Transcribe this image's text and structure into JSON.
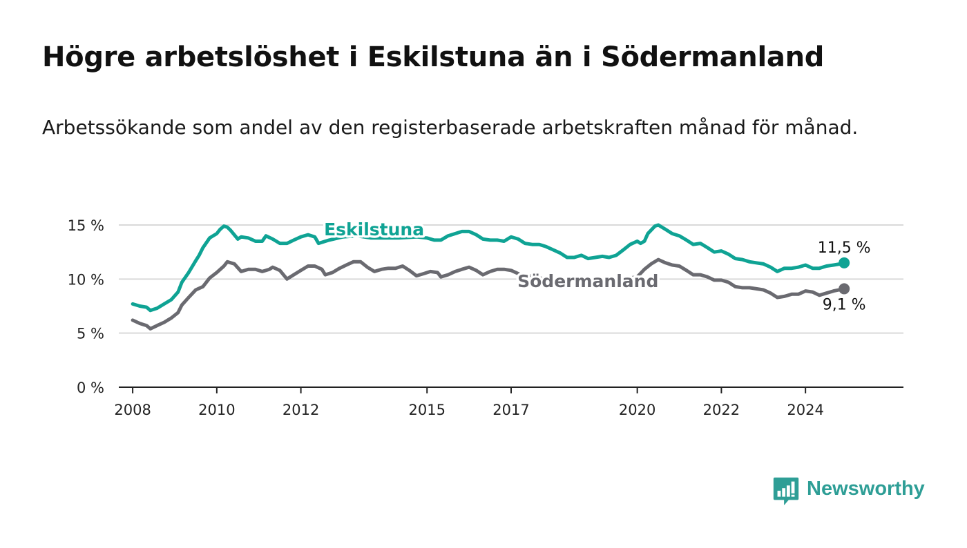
{
  "title": "Högre arbetslöshet i Eskilstuna än i Södermanland",
  "subtitle": "Arbetssökande som andel av den registerbaserade arbetskraften månad för månad.",
  "brand": {
    "name": "Newsworthy",
    "color": "#2e9e96",
    "icon": "bar-chart-speech-bubble-icon"
  },
  "chart_data": {
    "type": "line",
    "xlabel": "",
    "ylabel": "",
    "xlim": [
      2007.67,
      2026.33
    ],
    "ylim": [
      0,
      15
    ],
    "y_ticks": [
      {
        "value": 0,
        "label": "0 %"
      },
      {
        "value": 5,
        "label": "5 %"
      },
      {
        "value": 10,
        "label": "10 %"
      },
      {
        "value": 15,
        "label": "15 %"
      }
    ],
    "x_ticks": [
      {
        "value": 2008,
        "label": "2008"
      },
      {
        "value": 2010,
        "label": "2010"
      },
      {
        "value": 2012,
        "label": "2012"
      },
      {
        "value": 2015,
        "label": "2015"
      },
      {
        "value": 2017,
        "label": "2017"
      },
      {
        "value": 2020,
        "label": "2020"
      },
      {
        "value": 2022,
        "label": "2022"
      },
      {
        "value": 2024,
        "label": "2024"
      }
    ],
    "grid": true,
    "series": [
      {
        "name": "Eskilstuna",
        "color": "#0fa394",
        "end_label": "11,5 %",
        "points": [
          [
            2008.0,
            7.7
          ],
          [
            2008.17,
            7.5
          ],
          [
            2008.33,
            7.4
          ],
          [
            2008.42,
            7.1
          ],
          [
            2008.58,
            7.3
          ],
          [
            2008.75,
            7.7
          ],
          [
            2008.92,
            8.1
          ],
          [
            2009.08,
            8.8
          ],
          [
            2009.17,
            9.7
          ],
          [
            2009.33,
            10.6
          ],
          [
            2009.5,
            11.7
          ],
          [
            2009.58,
            12.2
          ],
          [
            2009.67,
            12.9
          ],
          [
            2009.83,
            13.8
          ],
          [
            2010.0,
            14.2
          ],
          [
            2010.08,
            14.6
          ],
          [
            2010.17,
            14.9
          ],
          [
            2010.25,
            14.8
          ],
          [
            2010.33,
            14.5
          ],
          [
            2010.5,
            13.7
          ],
          [
            2010.58,
            13.9
          ],
          [
            2010.75,
            13.8
          ],
          [
            2010.92,
            13.5
          ],
          [
            2011.08,
            13.5
          ],
          [
            2011.17,
            14.0
          ],
          [
            2011.33,
            13.7
          ],
          [
            2011.5,
            13.3
          ],
          [
            2011.67,
            13.3
          ],
          [
            2011.83,
            13.6
          ],
          [
            2012.0,
            13.9
          ],
          [
            2012.17,
            14.1
          ],
          [
            2012.33,
            13.9
          ],
          [
            2012.42,
            13.3
          ],
          [
            2012.67,
            13.6
          ],
          [
            2013.0,
            13.9
          ],
          [
            2013.33,
            14.0
          ],
          [
            2013.67,
            13.8
          ],
          [
            2014.0,
            13.8
          ],
          [
            2014.33,
            13.8
          ],
          [
            2014.75,
            13.9
          ],
          [
            2015.0,
            13.8
          ],
          [
            2015.17,
            13.6
          ],
          [
            2015.33,
            13.6
          ],
          [
            2015.5,
            14.0
          ],
          [
            2015.67,
            14.2
          ],
          [
            2015.83,
            14.4
          ],
          [
            2016.0,
            14.4
          ],
          [
            2016.17,
            14.1
          ],
          [
            2016.33,
            13.7
          ],
          [
            2016.5,
            13.6
          ],
          [
            2016.67,
            13.6
          ],
          [
            2016.83,
            13.5
          ],
          [
            2017.0,
            13.9
          ],
          [
            2017.17,
            13.7
          ],
          [
            2017.33,
            13.3
          ],
          [
            2017.5,
            13.2
          ],
          [
            2017.67,
            13.2
          ],
          [
            2017.83,
            13.0
          ],
          [
            2018.0,
            12.7
          ],
          [
            2018.17,
            12.4
          ],
          [
            2018.33,
            12.0
          ],
          [
            2018.5,
            12.0
          ],
          [
            2018.67,
            12.2
          ],
          [
            2018.83,
            11.9
          ],
          [
            2019.0,
            12.0
          ],
          [
            2019.17,
            12.1
          ],
          [
            2019.33,
            12.0
          ],
          [
            2019.5,
            12.2
          ],
          [
            2019.67,
            12.7
          ],
          [
            2019.83,
            13.2
          ],
          [
            2020.0,
            13.5
          ],
          [
            2020.08,
            13.3
          ],
          [
            2020.17,
            13.5
          ],
          [
            2020.25,
            14.2
          ],
          [
            2020.42,
            14.9
          ],
          [
            2020.5,
            15.0
          ],
          [
            2020.67,
            14.6
          ],
          [
            2020.83,
            14.2
          ],
          [
            2021.0,
            14.0
          ],
          [
            2021.17,
            13.6
          ],
          [
            2021.33,
            13.2
          ],
          [
            2021.5,
            13.3
          ],
          [
            2021.67,
            12.9
          ],
          [
            2021.83,
            12.5
          ],
          [
            2022.0,
            12.6
          ],
          [
            2022.17,
            12.3
          ],
          [
            2022.33,
            11.9
          ],
          [
            2022.5,
            11.8
          ],
          [
            2022.67,
            11.6
          ],
          [
            2022.83,
            11.5
          ],
          [
            2023.0,
            11.4
          ],
          [
            2023.17,
            11.1
          ],
          [
            2023.33,
            10.7
          ],
          [
            2023.5,
            11.0
          ],
          [
            2023.67,
            11.0
          ],
          [
            2023.83,
            11.1
          ],
          [
            2024.0,
            11.3
          ],
          [
            2024.17,
            11.0
          ],
          [
            2024.33,
            11.0
          ],
          [
            2024.5,
            11.2
          ],
          [
            2024.67,
            11.3
          ],
          [
            2024.83,
            11.4
          ],
          [
            2024.92,
            11.5
          ]
        ]
      },
      {
        "name": "Södermanland",
        "color": "#6a6a70",
        "end_label": "9,1 %",
        "points": [
          [
            2008.0,
            6.2
          ],
          [
            2008.17,
            5.9
          ],
          [
            2008.33,
            5.7
          ],
          [
            2008.42,
            5.4
          ],
          [
            2008.58,
            5.7
          ],
          [
            2008.75,
            6.0
          ],
          [
            2008.92,
            6.4
          ],
          [
            2009.08,
            6.9
          ],
          [
            2009.17,
            7.6
          ],
          [
            2009.33,
            8.3
          ],
          [
            2009.5,
            9.0
          ],
          [
            2009.67,
            9.3
          ],
          [
            2009.83,
            10.1
          ],
          [
            2010.0,
            10.6
          ],
          [
            2010.17,
            11.2
          ],
          [
            2010.25,
            11.6
          ],
          [
            2010.42,
            11.4
          ],
          [
            2010.58,
            10.7
          ],
          [
            2010.75,
            10.9
          ],
          [
            2010.92,
            10.9
          ],
          [
            2011.08,
            10.7
          ],
          [
            2011.25,
            10.9
          ],
          [
            2011.33,
            11.1
          ],
          [
            2011.5,
            10.8
          ],
          [
            2011.67,
            10.0
          ],
          [
            2011.83,
            10.4
          ],
          [
            2012.0,
            10.8
          ],
          [
            2012.17,
            11.2
          ],
          [
            2012.33,
            11.2
          ],
          [
            2012.5,
            10.9
          ],
          [
            2012.58,
            10.4
          ],
          [
            2012.75,
            10.6
          ],
          [
            2012.92,
            11.0
          ],
          [
            2013.08,
            11.3
          ],
          [
            2013.25,
            11.6
          ],
          [
            2013.42,
            11.6
          ],
          [
            2013.58,
            11.1
          ],
          [
            2013.75,
            10.7
          ],
          [
            2013.92,
            10.9
          ],
          [
            2014.08,
            11.0
          ],
          [
            2014.25,
            11.0
          ],
          [
            2014.42,
            11.2
          ],
          [
            2014.58,
            10.8
          ],
          [
            2014.75,
            10.3
          ],
          [
            2014.92,
            10.5
          ],
          [
            2015.08,
            10.7
          ],
          [
            2015.25,
            10.6
          ],
          [
            2015.33,
            10.2
          ],
          [
            2015.5,
            10.4
          ],
          [
            2015.67,
            10.7
          ],
          [
            2015.83,
            10.9
          ],
          [
            2016.0,
            11.1
          ],
          [
            2016.17,
            10.8
          ],
          [
            2016.33,
            10.4
          ],
          [
            2016.5,
            10.7
          ],
          [
            2016.67,
            10.9
          ],
          [
            2016.83,
            10.9
          ],
          [
            2017.0,
            10.8
          ],
          [
            2017.17,
            10.5
          ],
          [
            2017.33,
            10.2
          ],
          [
            2017.5,
            10.3
          ],
          [
            2017.67,
            10.1
          ],
          [
            2017.83,
            10.0
          ],
          [
            2018.0,
            9.9
          ],
          [
            2018.33,
            9.9
          ],
          [
            2018.67,
            9.9
          ],
          [
            2019.0,
            9.8
          ],
          [
            2019.33,
            9.9
          ],
          [
            2019.67,
            10.0
          ],
          [
            2019.83,
            10.1
          ],
          [
            2020.0,
            10.2
          ],
          [
            2020.17,
            10.9
          ],
          [
            2020.33,
            11.4
          ],
          [
            2020.5,
            11.8
          ],
          [
            2020.67,
            11.5
          ],
          [
            2020.83,
            11.3
          ],
          [
            2021.0,
            11.2
          ],
          [
            2021.17,
            10.8
          ],
          [
            2021.33,
            10.4
          ],
          [
            2021.5,
            10.4
          ],
          [
            2021.67,
            10.2
          ],
          [
            2021.83,
            9.9
          ],
          [
            2022.0,
            9.9
          ],
          [
            2022.17,
            9.7
          ],
          [
            2022.33,
            9.3
          ],
          [
            2022.5,
            9.2
          ],
          [
            2022.67,
            9.2
          ],
          [
            2022.83,
            9.1
          ],
          [
            2023.0,
            9.0
          ],
          [
            2023.17,
            8.7
          ],
          [
            2023.33,
            8.3
          ],
          [
            2023.5,
            8.4
          ],
          [
            2023.67,
            8.6
          ],
          [
            2023.83,
            8.6
          ],
          [
            2024.0,
            8.9
          ],
          [
            2024.17,
            8.8
          ],
          [
            2024.33,
            8.5
          ],
          [
            2024.5,
            8.7
          ],
          [
            2024.67,
            8.9
          ],
          [
            2024.92,
            9.1
          ]
        ]
      }
    ]
  }
}
